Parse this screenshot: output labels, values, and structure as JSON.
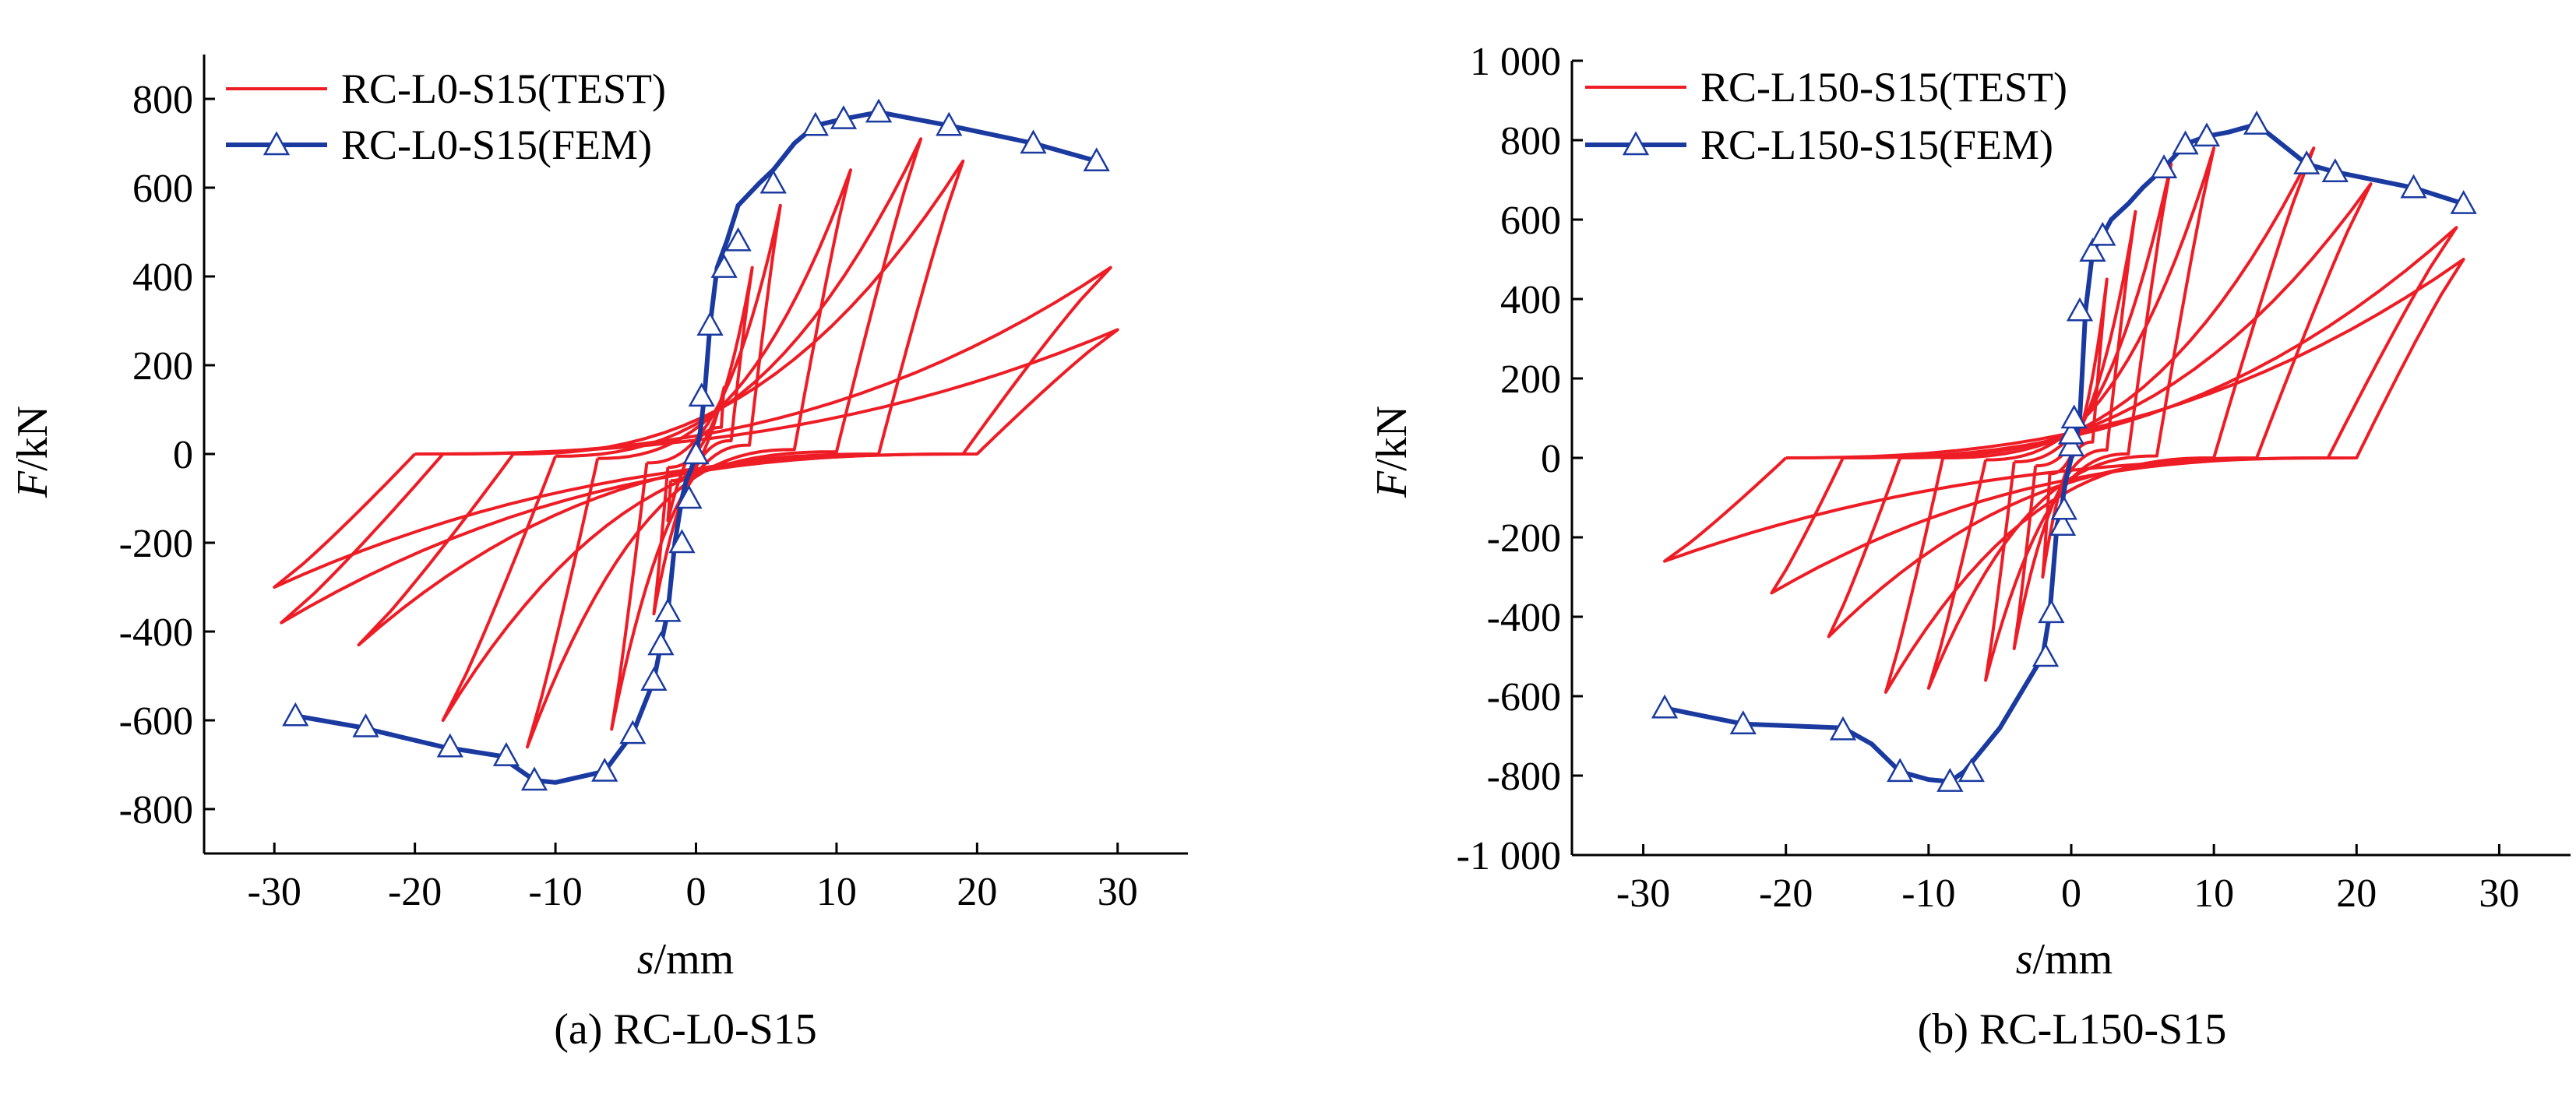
{
  "colors": {
    "test": "#ee1c25",
    "fem": "#1a3aa0",
    "axis": "#000000"
  },
  "chart_data": [
    {
      "type": "line",
      "caption": "(a) RC-L0-S15",
      "xlabel_italic": "s",
      "xlabel_unit": "/mm",
      "ylabel_italic": "F",
      "ylabel_unit": "/kN",
      "xlim": [
        -35,
        35
      ],
      "ylim": [
        -900,
        900
      ],
      "xticks": [
        -30,
        -20,
        -10,
        0,
        10,
        20,
        30
      ],
      "xtick_labels": [
        "-30",
        "-20",
        "-10",
        "0",
        "10",
        "20",
        "30"
      ],
      "yticks": [
        -800,
        -600,
        -400,
        -200,
        0,
        200,
        400,
        600,
        800
      ],
      "ytick_labels": [
        "-800",
        "-600",
        "-400",
        "-200",
        "0",
        "200",
        "400",
        "600",
        "800"
      ],
      "legend_position": "top-left",
      "series": [
        {
          "name": "RC-L0-S15(TEST)",
          "style": "hysteresis",
          "loops": [
            {
              "pos_peak": [
                2.0,
                150
              ],
              "neg_peak": [
                -2.0,
                -150
              ],
              "pos_end": [
                1.8,
                60
              ],
              "neg_end": [
                -1.8,
                -60
              ]
            },
            {
              "pos_peak": [
                4.0,
                420
              ],
              "neg_peak": [
                -3.0,
                -360
              ],
              "pos_end": [
                2.5,
                30
              ],
              "neg_end": [
                -2.0,
                -30
              ]
            },
            {
              "pos_peak": [
                6.0,
                560
              ],
              "neg_peak": [
                -6.0,
                -620
              ],
              "pos_end": [
                3.8,
                20
              ],
              "neg_end": [
                -3.5,
                -20
              ]
            },
            {
              "pos_peak": [
                11.0,
                640
              ],
              "neg_peak": [
                -12.0,
                -660
              ],
              "pos_end": [
                7.0,
                10
              ],
              "neg_end": [
                -7.0,
                -10
              ]
            },
            {
              "pos_peak": [
                16.0,
                710
              ],
              "neg_peak": [
                -18.0,
                -600
              ],
              "pos_end": [
                10.0,
                5
              ],
              "neg_end": [
                -10.0,
                -5
              ]
            },
            {
              "pos_peak": [
                19.0,
                660
              ],
              "neg_peak": [
                -24.0,
                -430
              ],
              "pos_end": [
                13.0,
                0
              ],
              "neg_end": [
                -13.0,
                0
              ]
            },
            {
              "pos_peak": [
                29.5,
                420
              ],
              "neg_peak": [
                -29.5,
                -380
              ],
              "pos_end": [
                19.0,
                0
              ],
              "neg_end": [
                -18.0,
                0
              ]
            },
            {
              "pos_peak": [
                30.0,
                280
              ],
              "neg_peak": [
                -30.0,
                -300
              ],
              "pos_end": [
                20.0,
                0
              ],
              "neg_end": [
                -20.0,
                0
              ]
            }
          ]
        },
        {
          "name": "RC-L0-S15(FEM)",
          "style": "line-triangle",
          "x": [
            -28.5,
            -24,
            -18,
            -14,
            -11.5,
            -10,
            -6.5,
            -4.5,
            -3,
            -2.5,
            -2,
            -1.5,
            -1,
            -0.7,
            -0.3,
            0,
            0.3,
            0.6,
            1,
            1.5,
            2.2,
            3,
            4.5,
            5.5,
            7,
            8.5,
            10.5,
            13,
            18,
            24,
            28.5
          ],
          "y": [
            -590,
            -615,
            -660,
            -680,
            -735,
            -740,
            -715,
            -630,
            -510,
            -430,
            -355,
            -200,
            -100,
            -60,
            -30,
            0,
            50,
            130,
            290,
            420,
            480,
            560,
            610,
            640,
            700,
            740,
            755,
            770,
            740,
            700,
            660
          ],
          "markers": [
            [
              -28.5,
              -590
            ],
            [
              -23.5,
              -615
            ],
            [
              -17.5,
              -660
            ],
            [
              -13.5,
              -680
            ],
            [
              -11.5,
              -735
            ],
            [
              -6.5,
              -715
            ],
            [
              -4.5,
              -630
            ],
            [
              -3,
              -510
            ],
            [
              -2.5,
              -430
            ],
            [
              -2,
              -355
            ],
            [
              -1,
              -200
            ],
            [
              -0.5,
              -100
            ],
            [
              0,
              0
            ],
            [
              0.4,
              130
            ],
            [
              1,
              290
            ],
            [
              2,
              420
            ],
            [
              3,
              480
            ],
            [
              5.5,
              610
            ],
            [
              8.5,
              740
            ],
            [
              10.5,
              755
            ],
            [
              13,
              770
            ],
            [
              18,
              740
            ],
            [
              24,
              700
            ],
            [
              28.5,
              660
            ]
          ]
        }
      ]
    },
    {
      "type": "line",
      "caption": "(b) RC-L150-S15",
      "xlabel_italic": "s",
      "xlabel_unit": "/mm",
      "ylabel_italic": "F",
      "ylabel_unit": "/kN",
      "xlim": [
        -35,
        35
      ],
      "ylim": [
        -1000,
        1000
      ],
      "xticks": [
        -30,
        -20,
        -10,
        0,
        10,
        20,
        30
      ],
      "xtick_labels": [
        "-30",
        "-20",
        "-10",
        "0",
        "10",
        "20",
        "30"
      ],
      "yticks": [
        -1000,
        -800,
        -600,
        -400,
        -200,
        0,
        200,
        400,
        600,
        800,
        1000
      ],
      "ytick_labels": [
        "-1 000",
        "-800",
        "-600",
        "-400",
        "-200",
        "0",
        "200",
        "400",
        "600",
        "800",
        "1 000"
      ],
      "legend_position": "top-left",
      "series": [
        {
          "name": "RC-L150-S15(TEST)",
          "style": "hysteresis",
          "loops": [
            {
              "pos_peak": [
                2.5,
                450
              ],
              "neg_peak": [
                -2.0,
                -300
              ],
              "pos_end": [
                1.5,
                40
              ],
              "neg_end": [
                -1.5,
                -40
              ]
            },
            {
              "pos_peak": [
                4.5,
                620
              ],
              "neg_peak": [
                -4.0,
                -480
              ],
              "pos_end": [
                2.5,
                20
              ],
              "neg_end": [
                -2.5,
                -20
              ]
            },
            {
              "pos_peak": [
                7.0,
                740
              ],
              "neg_peak": [
                -6.0,
                -560
              ],
              "pos_end": [
                4.0,
                10
              ],
              "neg_end": [
                -4.0,
                -10
              ]
            },
            {
              "pos_peak": [
                10.0,
                780
              ],
              "neg_peak": [
                -10.0,
                -580
              ],
              "pos_end": [
                6.0,
                5
              ],
              "neg_end": [
                -6.0,
                -5
              ]
            },
            {
              "pos_peak": [
                17.0,
                780
              ],
              "neg_peak": [
                -13.0,
                -590
              ],
              "pos_end": [
                10.0,
                0
              ],
              "neg_end": [
                -9.0,
                0
              ]
            },
            {
              "pos_peak": [
                21.0,
                690
              ],
              "neg_peak": [
                -17.0,
                -450
              ],
              "pos_end": [
                13.0,
                0
              ],
              "neg_end": [
                -12.0,
                0
              ]
            },
            {
              "pos_peak": [
                27.0,
                580
              ],
              "neg_peak": [
                -21.0,
                -340
              ],
              "pos_end": [
                18.0,
                0
              ],
              "neg_end": [
                -16.0,
                0
              ]
            },
            {
              "pos_peak": [
                27.5,
                500
              ],
              "neg_peak": [
                -28.5,
                -260
              ],
              "pos_end": [
                20.0,
                0
              ],
              "neg_end": [
                -20.0,
                0
              ]
            }
          ]
        },
        {
          "name": "RC-L150-S15(FEM)",
          "style": "line-triangle",
          "x": [
            -28.5,
            -23,
            -16,
            -14,
            -12,
            -10,
            -8.5,
            -7.5,
            -5,
            -2,
            -1.5,
            -1,
            -0.7,
            -0.4,
            0,
            0.3,
            0.6,
            1,
            1.5,
            2.2,
            2.8,
            4,
            5,
            6.5,
            8,
            9.5,
            11,
            13,
            16.5,
            18.5,
            24,
            27.5
          ],
          "y": [
            -630,
            -670,
            -680,
            -720,
            -790,
            -810,
            -815,
            -790,
            -680,
            -500,
            -390,
            -170,
            -130,
            -60,
            0,
            40,
            100,
            370,
            520,
            560,
            600,
            640,
            680,
            730,
            790,
            810,
            820,
            840,
            740,
            720,
            680,
            640
          ],
          "markers": [
            [
              -28.5,
              -630
            ],
            [
              -23,
              -670
            ],
            [
              -16,
              -685
            ],
            [
              -12,
              -790
            ],
            [
              -8.5,
              -815
            ],
            [
              -7,
              -790
            ],
            [
              -1.8,
              -500
            ],
            [
              -1.4,
              -390
            ],
            [
              -0.6,
              -170
            ],
            [
              -0.5,
              -130
            ],
            [
              0,
              30
            ],
            [
              0,
              60
            ],
            [
              0.2,
              100
            ],
            [
              0.6,
              370
            ],
            [
              1.5,
              520
            ],
            [
              2.2,
              560
            ],
            [
              6.5,
              730
            ],
            [
              8,
              790
            ],
            [
              9.5,
              810
            ],
            [
              13,
              840
            ],
            [
              16.5,
              740
            ],
            [
              18.5,
              720
            ],
            [
              24,
              680
            ],
            [
              27.5,
              640
            ]
          ]
        }
      ]
    }
  ]
}
